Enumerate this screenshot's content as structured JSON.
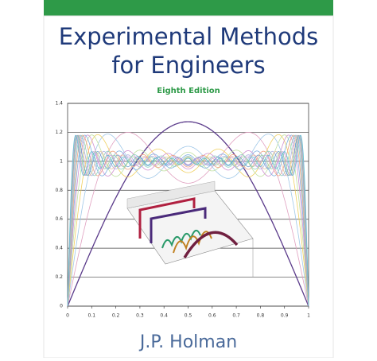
{
  "cover": {
    "title_line1": "Experimental Methods",
    "title_line2": "for Engineers",
    "edition": "Eighth Edition",
    "author": "J.P. Holman"
  },
  "chart_data": {
    "type": "line",
    "xlim": [
      0,
      1
    ],
    "ylim": [
      0,
      1.4
    ],
    "xticks": [
      0,
      0.1,
      0.2,
      0.3,
      0.4,
      0.5,
      0.6,
      0.7,
      0.8,
      0.9,
      1
    ],
    "yticks": [
      0,
      0.2,
      0.4,
      0.6,
      0.8,
      1,
      1.2,
      1.4
    ],
    "grid": true
  }
}
